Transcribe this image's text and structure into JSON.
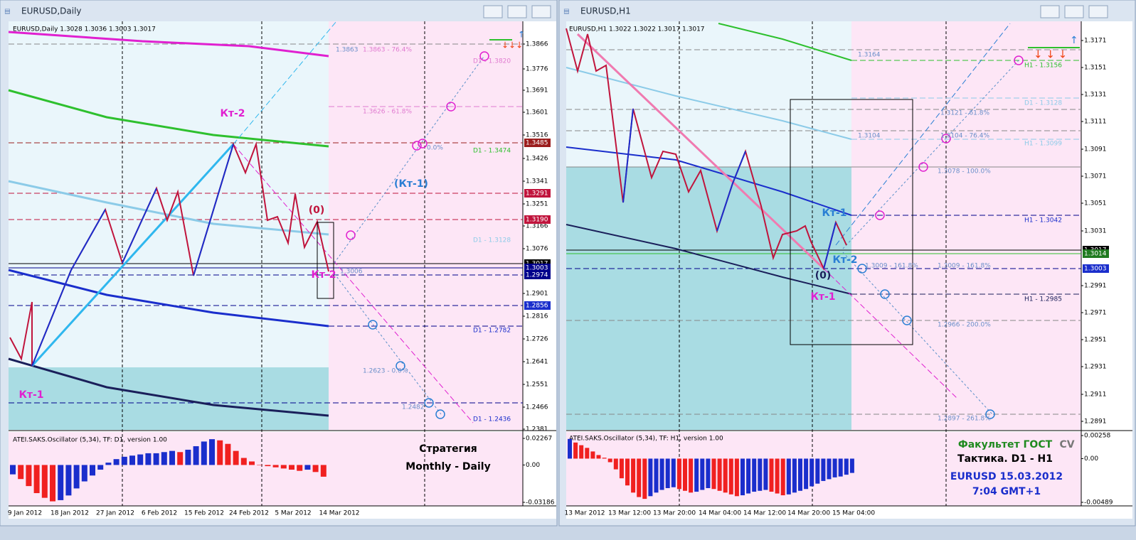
{
  "left": {
    "title": "EURUSD,Daily",
    "info": "EURUSD,Daily  1.3028 1.3036 1.3003 1.3017",
    "price_axis": [
      "1.3866",
      "1.3776",
      "1.3691",
      "1.3601",
      "1.3516",
      "1.3426",
      "1.3341",
      "1.3251",
      "1.3166",
      "1.3076",
      "1.2901",
      "1.2816",
      "1.2726",
      "1.2641",
      "1.2551",
      "1.2466",
      "1.2381"
    ],
    "price_marks": [
      "1.3485",
      "1.3291",
      "1.3190",
      "1.3017",
      "1.3003",
      "1.2974",
      "1.2856"
    ],
    "dates": [
      "9 Jan 2012",
      "18 Jan 2012",
      "27 Jan 2012",
      "6 Feb 2012",
      "15 Feb 2012",
      "24 Feb 2012",
      "5 Mar 2012",
      "14 Mar 2012"
    ],
    "levels": [
      "1.3863",
      "1.3863 - 76.4%",
      "D1 - 1.3820",
      "1.3626 - 61.8%",
      "0.0%",
      "D1 - 1.3474",
      "D1 - 1.3128",
      "1.3006",
      "D1 - 1.2782",
      "1.2623 - 0.0%",
      "1.2482",
      "D1 - 1.2436"
    ],
    "annotations": [
      "Кт-2",
      "(Кт-1)",
      "(0)",
      "Кт-1",
      "Кт-2"
    ],
    "oscillator": {
      "title": "ATEI.SAKS.Oscillator (5,34), TF: D1, version 1.00",
      "ticks": [
        0.02267,
        {
          "value": 0,
          "label": "0.00"
        },
        -0.03186
      ],
      "values": [
        -0.008,
        -0.012,
        -0.018,
        -0.024,
        -0.028,
        -0.031,
        -0.03,
        -0.026,
        -0.02,
        -0.014,
        -0.009,
        -0.004,
        0.002,
        0.005,
        0.007,
        0.008,
        0.009,
        0.01,
        0.01,
        0.011,
        0.012,
        0.011,
        0.013,
        0.016,
        0.02,
        0.022,
        0.021,
        0.018,
        0.012,
        0.006,
        0.003,
        0.0,
        -0.001,
        -0.002,
        -0.003,
        -0.004,
        -0.005,
        -0.004,
        -0.006,
        -0.01
      ]
    },
    "caption": [
      "Стратегия",
      "Monthly - Daily"
    ]
  },
  "right": {
    "title": "EURUSD,H1",
    "info": "EURUSD,H1  1.3022 1.3022 1.3017 1.3017",
    "price_axis": [
      "1.3171",
      "1.3151",
      "1.3131",
      "1.3111",
      "1.3091",
      "1.3071",
      "1.3051",
      "1.3031",
      "1.2991",
      "1.2971",
      "1.2951",
      "1.2931",
      "1.2911",
      "1.2891"
    ],
    "price_marks": [
      "1.3017",
      "1.3014",
      "1.3003"
    ],
    "dates": [
      "13 Mar 2012",
      "13 Mar 12:00",
      "13 Mar 20:00",
      "14 Mar 04:00",
      "14 Mar 12:00",
      "14 Mar 20:00",
      "15 Mar 04:00"
    ],
    "levels": [
      "1.3164",
      "H1 - 1.3156",
      "D1 - 1.3128",
      "1.3121 - 61.8%",
      "1.3104",
      "1.3104 - 76.4%",
      "H1 - 1.3099",
      "1.3078 - 100.0%",
      "H1 - 1.3042",
      "1.3009 - 161.8%",
      "1.3009 - 161.8%",
      "H1 - 1.2985",
      "1.2966 - 200.0%",
      "1.2897 - 261.8%"
    ],
    "annotations": [
      "Кт-1",
      "Кт-2",
      "(0)",
      "Кт-1"
    ],
    "oscillator": {
      "title": "ATEI.SAKS.Oscillator (5,34), TF: H1, version 1.00",
      "ticks": [
        0.00258,
        {
          "value": 0,
          "label": "0.00"
        },
        -0.00489
      ],
      "values": [
        0.0022,
        0.0018,
        0.0015,
        0.0012,
        0.0008,
        0.0004,
        0.0001,
        -0.0004,
        -0.0012,
        -0.0022,
        -0.003,
        -0.0038,
        -0.0043,
        -0.0045,
        -0.0042,
        -0.0038,
        -0.0035,
        -0.0033,
        -0.0032,
        -0.0034,
        -0.0036,
        -0.0038,
        -0.0037,
        -0.0035,
        -0.0033,
        -0.0034,
        -0.0036,
        -0.0038,
        -0.004,
        -0.0042,
        -0.0041,
        -0.0039,
        -0.0037,
        -0.0036,
        -0.0035,
        -0.0037,
        -0.0039,
        -0.0041,
        -0.004,
        -0.0038,
        -0.0036,
        -0.0034,
        -0.0031,
        -0.0028,
        -0.0025,
        -0.0023,
        -0.0021,
        -0.002,
        -0.0018,
        -0.0016
      ]
    },
    "caption": [
      "Факультет ГОСТ",
      "CV",
      "Тактика. D1 - H1",
      "EURUSD 15.03.2012",
      "7:04 GMT+1"
    ]
  }
}
